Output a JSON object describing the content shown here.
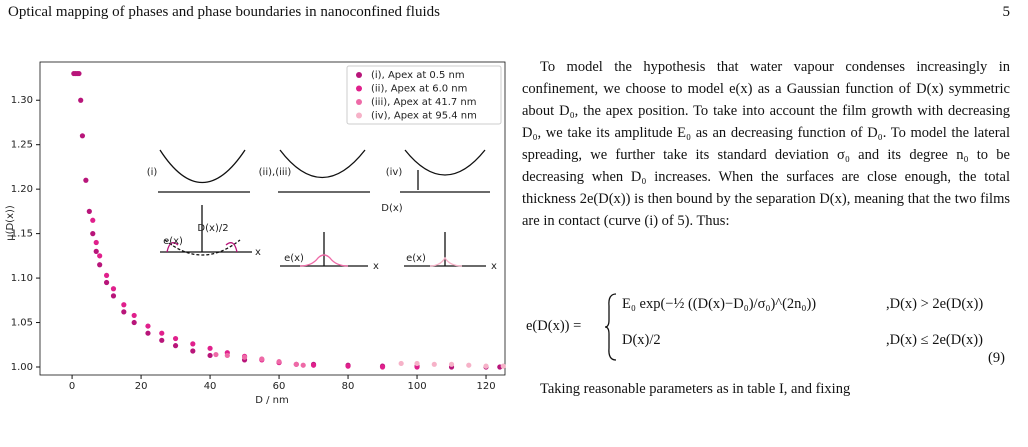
{
  "header": {
    "title": "Optical mapping of phases and phase boundaries in nanoconfined fluids",
    "page_number": "5"
  },
  "chart_data": {
    "type": "scatter",
    "ylabel": "μ(D(x))",
    "xlabel": "D / nm",
    "xlim": [
      -9.3,
      125.5
    ],
    "ylim": [
      0.991,
      1.343
    ],
    "xticks": [
      0,
      20,
      40,
      60,
      80,
      100,
      120
    ],
    "yticks": [
      {
        "value": 1.0,
        "label": "1.00"
      },
      {
        "value": 1.05,
        "label": "1.05"
      },
      {
        "value": 1.1,
        "label": "1.10"
      },
      {
        "value": 1.15,
        "label": "1.15"
      },
      {
        "value": 1.2,
        "label": "1.20"
      },
      {
        "value": 1.25,
        "label": "1.25"
      },
      {
        "value": 1.3,
        "label": "1.30"
      }
    ],
    "legend": "upper right",
    "series": [
      {
        "name": "(i), Apex at 0.5 nm",
        "color": "#b8157a",
        "x": [
          0.5,
          1,
          1.5,
          2,
          2.5,
          3,
          4,
          5,
          6,
          7,
          8,
          10,
          12,
          15,
          18,
          22,
          26,
          30,
          35,
          40,
          50,
          60,
          70,
          80,
          90,
          100,
          110,
          120,
          124
        ],
        "values": [
          1.33,
          1.33,
          1.33,
          1.33,
          1.3,
          1.26,
          1.21,
          1.175,
          1.15,
          1.13,
          1.115,
          1.095,
          1.08,
          1.062,
          1.05,
          1.038,
          1.03,
          1.024,
          1.018,
          1.013,
          1.008,
          1.005,
          1.003,
          1.002,
          1.001,
          1.001,
          1.0,
          1.0,
          1.0
        ]
      },
      {
        "name": "(ii), Apex at 6.0 nm",
        "color": "#e0208c",
        "x": [
          6,
          7,
          8,
          10,
          12,
          15,
          18,
          22,
          26,
          30,
          35,
          40,
          45,
          50,
          55,
          60,
          65,
          70,
          80,
          90,
          100
        ],
        "values": [
          1.165,
          1.14,
          1.125,
          1.103,
          1.088,
          1.07,
          1.058,
          1.046,
          1.038,
          1.032,
          1.026,
          1.021,
          1.016,
          1.012,
          1.008,
          1.005,
          1.003,
          1.002,
          1.001,
          1.0,
          1.0
        ]
      },
      {
        "name": "(iii), Apex at 41.7 nm",
        "color": "#ee6aa7",
        "x": [
          41.7,
          45,
          50,
          55,
          60,
          65,
          67
        ],
        "values": [
          1.014,
          1.013,
          1.011,
          1.009,
          1.006,
          1.003,
          1.002
        ]
      },
      {
        "name": "(iv), Apex at 95.4 nm",
        "color": "#f6b2c8",
        "x": [
          95.4,
          100,
          105,
          110,
          115,
          120,
          125
        ],
        "values": [
          1.004,
          1.004,
          1.003,
          1.003,
          1.002,
          1.001,
          1.001
        ]
      }
    ],
    "annotations": [
      "(i)",
      "(ii),(iii)",
      "(iv)",
      "D(x)/2",
      "e(x)",
      "x",
      "e(x)",
      "x",
      "e(x)",
      "x",
      "D(x)"
    ]
  },
  "text": {
    "paragraph": "To model the hypothesis that water vapour condenses increasingly in confinement, we choose to model e(x) as a Gaussian function of D(x) symmetric about D₀, the apex position. To take into account the film growth with decreasing D₀, we take its amplitude E₀ as an decreasing function of D₀. To model the lateral spreading, we further take its standard deviation σ₀ and its degree n₀ to be decreasing when D₀ increases. When the surfaces are close enough, the total thickness 2e(D(x)) is then bound by the separation D(x), meaning that the two films are in contact (curve (i) of 5). Thus:",
    "equation": {
      "lhs": "e(D(x)) =",
      "case1": "E₀ exp(−½ ((D(x)−D₀)/σ₀)^(2n₀))",
      "condition1": ",D(x) > 2e(D(x))",
      "case2": "D(x)/2",
      "condition2": ",D(x) ≤ 2e(D(x))",
      "number": "(9)"
    },
    "continuation": "Taking reasonable parameters as in table I, and fixing"
  }
}
